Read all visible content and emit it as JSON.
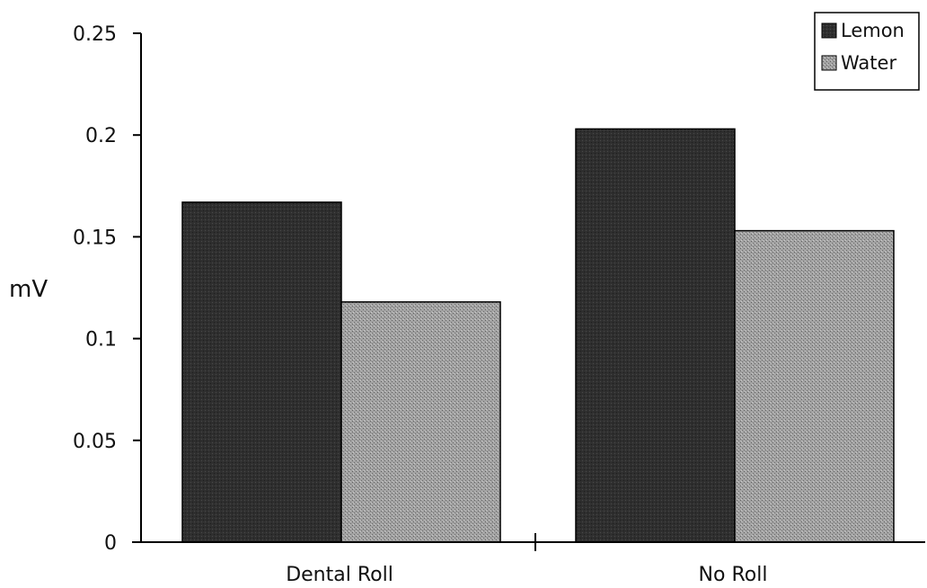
{
  "chart_data": {
    "type": "bar",
    "title": "",
    "xlabel": "",
    "ylabel": "mV",
    "categories": [
      "Dental Roll",
      "No Roll"
    ],
    "series": [
      {
        "name": "Lemon",
        "values": [
          0.167,
          0.203
        ],
        "color": "#2a2a2a"
      },
      {
        "name": "Water",
        "values": [
          0.118,
          0.153
        ],
        "color": "#9a9a9a"
      }
    ],
    "ylim": [
      0,
      0.25
    ],
    "yticks": [
      0,
      0.05,
      0.1,
      0.15,
      0.2,
      0.25
    ],
    "ytick_labels": [
      "0",
      "0.05",
      "0.1",
      "0.15",
      "0.2",
      "0.25"
    ],
    "grid": false,
    "legend_position": "top-right"
  }
}
